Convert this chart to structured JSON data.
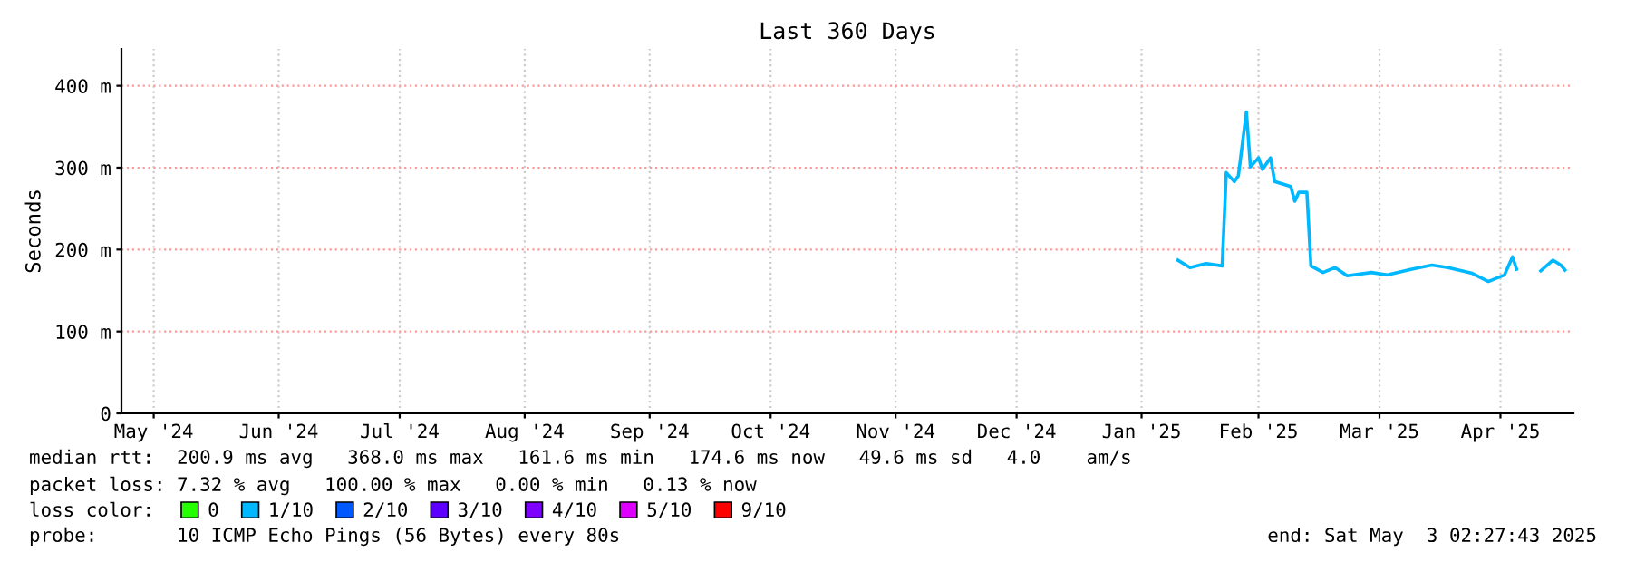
{
  "chart_data": {
    "type": "line",
    "title": "Last 360 Days",
    "ylabel": "Seconds",
    "xlim": [
      "2024-05-08",
      "2025-05-03T02:27"
    ],
    "xticks": [
      {
        "value": "2024-05-16",
        "label": "May '24"
      },
      {
        "value": "2024-06-16",
        "label": "Jun '24"
      },
      {
        "value": "2024-07-16",
        "label": "Jul '24"
      },
      {
        "value": "2024-08-16",
        "label": "Aug '24"
      },
      {
        "value": "2024-09-16",
        "label": "Sep '24"
      },
      {
        "value": "2024-10-16",
        "label": "Oct '24"
      },
      {
        "value": "2024-11-16",
        "label": "Nov '24"
      },
      {
        "value": "2024-12-16",
        "label": "Dec '24"
      },
      {
        "value": "2025-01-16",
        "label": "Jan '25"
      },
      {
        "value": "2025-02-14",
        "label": "Feb '25"
      },
      {
        "value": "2025-03-16",
        "label": "Mar '25"
      },
      {
        "value": "2025-04-15",
        "label": "Apr '25"
      }
    ],
    "ylim": [
      0,
      445
    ],
    "yticks": [
      {
        "value": 0,
        "label": "0"
      },
      {
        "value": 100,
        "label": "100 m"
      },
      {
        "value": 200,
        "label": "200 m"
      },
      {
        "value": 300,
        "label": "300 m"
      },
      {
        "value": 400,
        "label": "400 m"
      }
    ],
    "grid": true,
    "legend": "bottom",
    "marker": "none",
    "line_style": "solid",
    "series": [
      {
        "color": "#00b8ff",
        "x": [
          "2025-01-25",
          "2025-01-28",
          "2025-02-01",
          "2025-02-05",
          "2025-02-06",
          "2025-02-08",
          "2025-02-09",
          "2025-02-11",
          "2025-02-12",
          "2025-02-14",
          "2025-02-15",
          "2025-02-17",
          "2025-02-18",
          "2025-02-22",
          "2025-02-23",
          "2025-02-24",
          "2025-02-26",
          "2025-02-27",
          "2025-03-02",
          "2025-03-05",
          "2025-03-08",
          "2025-03-14",
          "2025-03-18",
          "2025-03-24",
          "2025-03-29",
          "2025-04-02",
          "2025-04-08",
          "2025-04-12",
          "2025-04-16",
          "2025-04-18",
          "2025-04-19",
          "2025-04-22",
          "2025-04-25",
          "2025-04-28",
          "2025-04-30",
          "2025-05-01"
        ],
        "values": [
          187,
          178,
          183,
          180,
          294,
          283,
          290,
          368,
          301,
          312,
          298,
          312,
          283,
          277,
          259,
          270,
          270,
          180,
          172,
          178,
          168,
          172,
          169,
          176,
          181,
          178,
          171,
          161,
          169,
          191,
          176,
          null,
          174,
          187,
          181,
          175
        ]
      },
      {
        "name": "0",
        "color": "#26ff00"
      },
      {
        "name": "1/10",
        "color": "#00b8ff"
      },
      {
        "name": "2/10",
        "color": "#0059ff"
      },
      {
        "name": "3/10",
        "color": "#5e00ff"
      },
      {
        "name": "4/10",
        "color": "#7e00ff"
      },
      {
        "name": "5/10",
        "color": "#dd00ff"
      },
      {
        "name": "9/10",
        "color": "#ff0000"
      }
    ],
    "annotations": [
      "median rtt:  200.9 ms avg   368.0 ms max   161.6 ms min   174.6 ms now   49.6 ms sd   4.0    am/s",
      "packet loss: 7.32 % avg   100.00 % max   0.00 % min   0.13 % now",
      "loss color:",
      "probe:       10 ICMP Echo Pings (56 Bytes) every 80s",
      "end: Sat May  3 02:27:43 2025"
    ]
  }
}
